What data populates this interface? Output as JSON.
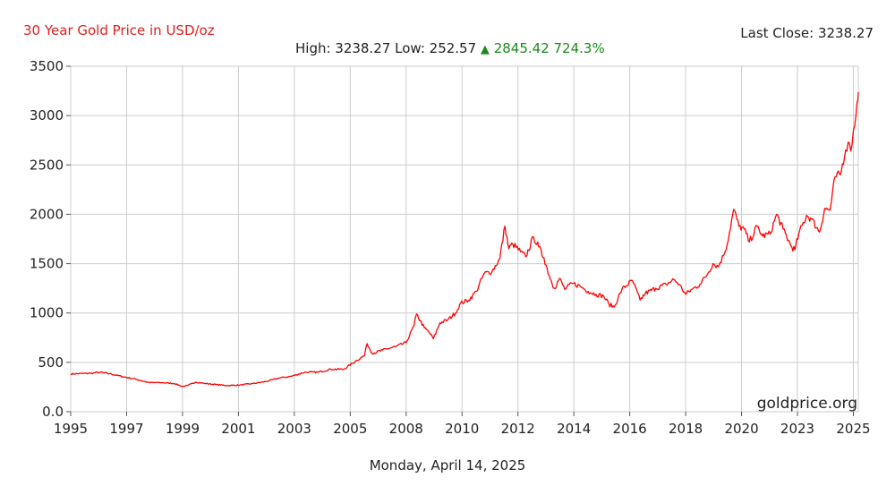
{
  "header": {
    "title": "30 Year Gold Price in USD/oz",
    "last_close_label": "Last Close: 3238.27",
    "high_label": "High: 3238.27",
    "low_label": "Low: 252.57",
    "change_symbol": "▲",
    "change_value": "2845.42",
    "change_pct": "724.3%"
  },
  "footer": {
    "date": "Monday, April 14, 2025"
  },
  "watermark": "goldprice.org",
  "colors": {
    "line": "#ff0000",
    "title": "#e0201e",
    "up": "#1a8a1a",
    "grid": "#cccccc"
  },
  "chart_data": {
    "type": "line",
    "title": "30 Year Gold Price in USD/oz",
    "xlabel": "",
    "ylabel": "",
    "ylim": [
      0,
      3500
    ],
    "xlim": [
      1995.0,
      2025.29
    ],
    "grid": true,
    "y_ticks": [
      "0.0",
      "500",
      "1000",
      "1500",
      "2000",
      "2500",
      "3000",
      "3500"
    ],
    "x_ticks": [
      {
        "label": "1995",
        "x": 1995.0
      },
      {
        "label": "1997",
        "x": 1997.15
      },
      {
        "label": "1999",
        "x": 1999.3
      },
      {
        "label": "2001",
        "x": 2001.45
      },
      {
        "label": "2003",
        "x": 2003.6
      },
      {
        "label": "2005",
        "x": 2005.75
      },
      {
        "label": "2008",
        "x": 2007.9
      },
      {
        "label": "2010",
        "x": 2010.05
      },
      {
        "label": "2012",
        "x": 2012.2
      },
      {
        "label": "2014",
        "x": 2014.35
      },
      {
        "label": "2016",
        "x": 2016.5
      },
      {
        "label": "2018",
        "x": 2018.65
      },
      {
        "label": "2020",
        "x": 2020.8
      },
      {
        "label": "2023",
        "x": 2022.95
      },
      {
        "label": "2025",
        "x": 2025.1
      }
    ],
    "series": [
      {
        "name": "Gold",
        "points": [
          [
            1995.0,
            383
          ],
          [
            1995.5,
            387
          ],
          [
            1995.8,
            390
          ],
          [
            1996.1,
            400
          ],
          [
            1996.5,
            385
          ],
          [
            1997.0,
            355
          ],
          [
            1997.5,
            330
          ],
          [
            1998.0,
            295
          ],
          [
            1998.5,
            295
          ],
          [
            1999.0,
            285
          ],
          [
            1999.3,
            255
          ],
          [
            1999.5,
            265
          ],
          [
            1999.8,
            300
          ],
          [
            2000.2,
            285
          ],
          [
            2000.6,
            275
          ],
          [
            2001.0,
            265
          ],
          [
            2001.5,
            270
          ],
          [
            2002.0,
            285
          ],
          [
            2002.5,
            305
          ],
          [
            2003.0,
            340
          ],
          [
            2003.5,
            360
          ],
          [
            2004.0,
            400
          ],
          [
            2004.5,
            400
          ],
          [
            2005.0,
            430
          ],
          [
            2005.5,
            430
          ],
          [
            2006.0,
            520
          ],
          [
            2006.3,
            570
          ],
          [
            2006.4,
            690
          ],
          [
            2006.6,
            590
          ],
          [
            2007.0,
            625
          ],
          [
            2007.5,
            660
          ],
          [
            2007.9,
            700
          ],
          [
            2008.2,
            870
          ],
          [
            2008.3,
            990
          ],
          [
            2008.6,
            850
          ],
          [
            2008.8,
            800
          ],
          [
            2008.95,
            740
          ],
          [
            2009.2,
            900
          ],
          [
            2009.5,
            930
          ],
          [
            2009.8,
            1000
          ],
          [
            2010.0,
            1100
          ],
          [
            2010.3,
            1130
          ],
          [
            2010.6,
            1220
          ],
          [
            2010.9,
            1400
          ],
          [
            2011.2,
            1420
          ],
          [
            2011.5,
            1550
          ],
          [
            2011.7,
            1880
          ],
          [
            2011.85,
            1650
          ],
          [
            2012.0,
            1700
          ],
          [
            2012.3,
            1620
          ],
          [
            2012.5,
            1570
          ],
          [
            2012.8,
            1770
          ],
          [
            2013.0,
            1670
          ],
          [
            2013.2,
            1560
          ],
          [
            2013.4,
            1380
          ],
          [
            2013.6,
            1250
          ],
          [
            2013.8,
            1350
          ],
          [
            2014.0,
            1240
          ],
          [
            2014.3,
            1300
          ],
          [
            2014.6,
            1270
          ],
          [
            2014.9,
            1220
          ],
          [
            2015.2,
            1190
          ],
          [
            2015.5,
            1170
          ],
          [
            2015.7,
            1090
          ],
          [
            2015.9,
            1060
          ],
          [
            2016.2,
            1240
          ],
          [
            2016.6,
            1330
          ],
          [
            2016.9,
            1130
          ],
          [
            2017.1,
            1200
          ],
          [
            2017.5,
            1250
          ],
          [
            2017.9,
            1290
          ],
          [
            2018.2,
            1340
          ],
          [
            2018.4,
            1290
          ],
          [
            2018.65,
            1190
          ],
          [
            2018.9,
            1240
          ],
          [
            2019.2,
            1290
          ],
          [
            2019.5,
            1400
          ],
          [
            2019.7,
            1500
          ],
          [
            2019.9,
            1470
          ],
          [
            2020.1,
            1580
          ],
          [
            2020.25,
            1700
          ],
          [
            2020.5,
            2050
          ],
          [
            2020.7,
            1880
          ],
          [
            2020.9,
            1850
          ],
          [
            2021.1,
            1720
          ],
          [
            2021.4,
            1880
          ],
          [
            2021.6,
            1780
          ],
          [
            2021.9,
            1800
          ],
          [
            2022.15,
            2000
          ],
          [
            2022.4,
            1850
          ],
          [
            2022.7,
            1680
          ],
          [
            2022.85,
            1640
          ],
          [
            2023.0,
            1800
          ],
          [
            2023.3,
            1990
          ],
          [
            2023.5,
            1950
          ],
          [
            2023.8,
            1820
          ],
          [
            2024.0,
            2060
          ],
          [
            2024.2,
            2040
          ],
          [
            2024.4,
            2380
          ],
          [
            2024.6,
            2400
          ],
          [
            2024.8,
            2650
          ],
          [
            2024.9,
            2730
          ],
          [
            2025.0,
            2640
          ],
          [
            2025.1,
            2850
          ],
          [
            2025.2,
            3000
          ],
          [
            2025.25,
            3140
          ],
          [
            2025.29,
            3238
          ]
        ]
      }
    ]
  }
}
